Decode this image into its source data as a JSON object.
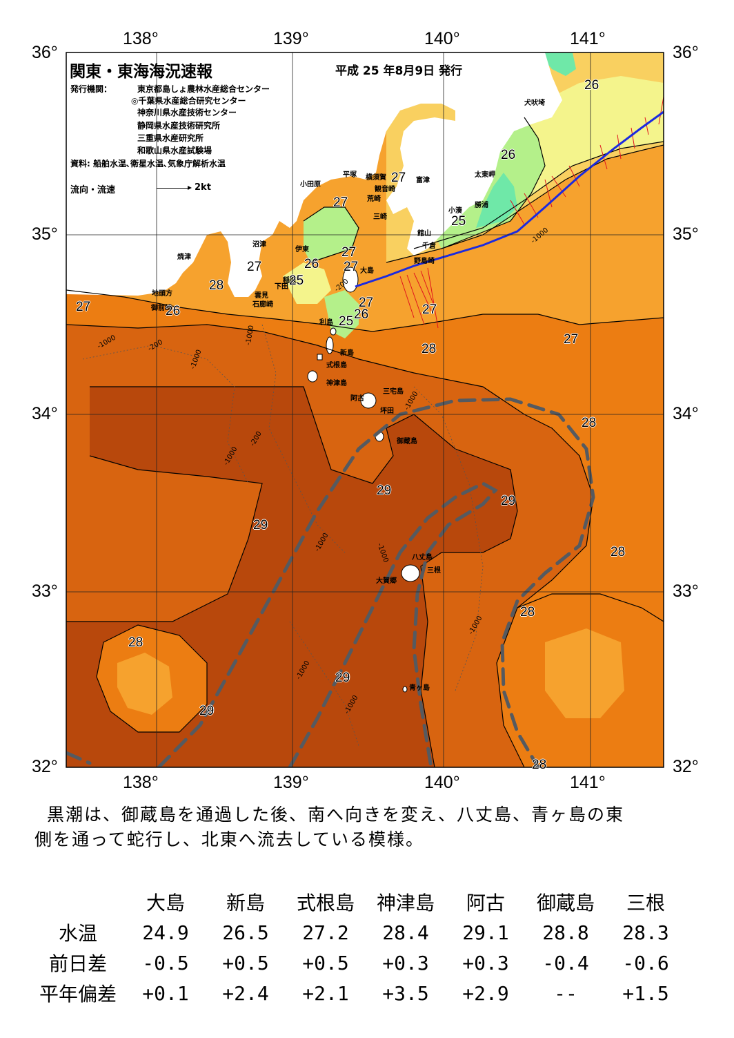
{
  "header": {
    "title": "関東・東海海況速報",
    "issue_date": "平成 25 年8月9日 発行",
    "agency_label": "発行機関：",
    "agencies": [
      "東京都島しょ農林水産総合センター",
      "◎千葉県水産総合研究センター",
      "神奈川県水産技術センター",
      "静岡県水産技術研究所",
      "三重県水産研究所",
      "和歌山県水産試験場"
    ],
    "source": "資料: 船舶水温､衛星水温､気象庁解析水温",
    "flow_label": "流向・流速",
    "flow_scale": "2kt"
  },
  "axes": {
    "longitudes": [
      "138°",
      "139°",
      "140°",
      "141°"
    ],
    "latitudes": [
      "36°",
      "35°",
      "34°",
      "33°",
      "32°"
    ]
  },
  "places": {
    "inubosaki": "犬吠埼",
    "futtsu": "富津",
    "taitomisaki": "太東岬",
    "katsuura": "勝浦",
    "kominato": "小湊",
    "tateyama": "館山",
    "chikura": "千倉",
    "nojimazaki": "野島崎",
    "hiratsuka": "平塚",
    "yokosuka": "横須賀",
    "kannonzaki": "観音崎",
    "arasaki": "荒崎",
    "misaki": "三崎",
    "odawara": "小田原",
    "numazu": "沼津",
    "ito": "伊東",
    "inatori": "稲取",
    "shimoda": "下田",
    "kumomi": "雲見",
    "irozaki": "石廊崎",
    "yaizu": "焼津",
    "jitogashira": "地頭方",
    "omaezaki": "御前崎",
    "oshima": "大島",
    "toshima": "利島",
    "niijima": "新島",
    "shikinejima": "式根島",
    "kozushima": "神津島",
    "miyakejima": "三宅島",
    "ako": "阿古",
    "tsubota": "坪田",
    "mikurajima": "御蔵島",
    "hachijojima": "八丈島",
    "mitsune": "三根",
    "okago": "大賀郷",
    "aogashima": "青ヶ島"
  },
  "isotherm_labels": [
    "26",
    "26",
    "27",
    "27",
    "27",
    "25",
    "27",
    "27",
    "26",
    "25",
    "28",
    "27",
    "27",
    "26",
    "26",
    "25",
    "27",
    "28",
    "27",
    "28",
    "29",
    "29",
    "29",
    "28",
    "28",
    "28",
    "29",
    "29",
    "28"
  ],
  "depth_labels": [
    "-200",
    "-1000"
  ],
  "colors": {
    "t24_25": "#6fe8a8",
    "t25": "#b4f08a",
    "t26": "#f4f48c",
    "t27": "#f9d060",
    "t27_5": "#f6a22e",
    "t28": "#ec7d12",
    "t28_5": "#d86410",
    "t29": "#b8480c",
    "land": "#ffffff",
    "kuroshio_axis": "#555a60",
    "ship_track": "#1b2ae0",
    "current_vectors": "#e0141e"
  },
  "summary": [
    "黒潮は、御蔵島を通過した後、南へ向きを変え、八丈島、青ヶ島の東",
    "側を通って蛇行し、北東へ流去している模様。"
  ],
  "stats": {
    "stations": [
      "大島",
      "新島",
      "式根島",
      "神津島",
      "阿古",
      "御蔵島",
      "三根"
    ],
    "rows": [
      {
        "label": "水温",
        "values": [
          "24.9",
          "26.5",
          "27.2",
          "28.4",
          "29.1",
          "28.8",
          "28.3"
        ]
      },
      {
        "label": "前日差",
        "values": [
          "-0.5",
          "+0.5",
          "+0.5",
          "+0.3",
          "+0.3",
          "-0.4",
          "-0.6"
        ]
      },
      {
        "label": "平年偏差",
        "values": [
          "+0.1",
          "+2.4",
          "+2.1",
          "+3.5",
          "+2.9",
          "--",
          "+1.5"
        ]
      }
    ]
  }
}
